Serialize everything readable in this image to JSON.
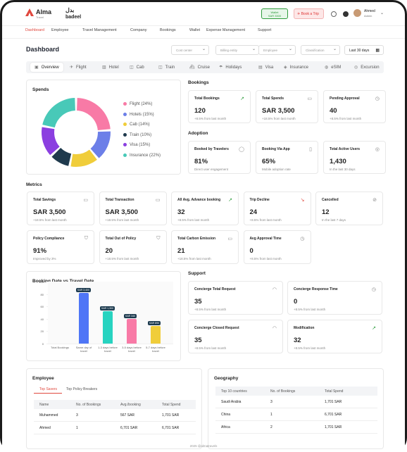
{
  "header": {
    "brand": "Alma",
    "brand_sub": "Travel",
    "partner_line1": "بدل",
    "partner_line2": "badeel",
    "wallet_label": "Wallet",
    "wallet_value": "SAR 3300",
    "book_trip": "Book a Trip",
    "user_name": "Ahmed",
    "user_role": "Admin"
  },
  "nav": [
    "Dashboard",
    "Employee",
    "Travel Management",
    "Company",
    "Bookings",
    "Wallet",
    "Expense Management",
    "Support"
  ],
  "page": {
    "title": "Dashboard",
    "filters": [
      "Cost center",
      "Billing entity",
      "Employee",
      "Classification"
    ],
    "date_range": "Last 30 days"
  },
  "tabs": [
    "Overview",
    "Flight",
    "Hotel",
    "Cab",
    "Train",
    "Cruise",
    "Holidays",
    "Visa",
    "Insurance",
    "eSIM",
    "Excursion"
  ],
  "spends": {
    "title": "Spends",
    "legend": [
      {
        "label": "Flight (24%)",
        "color": "#f87aa6"
      },
      {
        "label": "Hotels (15%)",
        "color": "#6c7fe8"
      },
      {
        "label": "Cab (14%)",
        "color": "#f0cd3a"
      },
      {
        "label": "Train (10%)",
        "color": "#1f3a4d"
      },
      {
        "label": "Visa (15%)",
        "color": "#8b3fe0"
      },
      {
        "label": "Insurance (22%)",
        "color": "#48c9b8"
      }
    ],
    "values": [
      24,
      15,
      14,
      10,
      15,
      22
    ]
  },
  "bookings": {
    "title": "Bookings",
    "cards": [
      {
        "title": "Total Bookings",
        "value": "120",
        "sub": "+8.5% from last month",
        "icon": "trend-up-icon"
      },
      {
        "title": "Total Spends",
        "value": "SAR 3,500",
        "sub": "+18.5% from last month",
        "icon": "wallet-icon"
      },
      {
        "title": "Pending Approval",
        "value": "40",
        "sub": "+8.5% from last month",
        "icon": "clock-icon"
      }
    ]
  },
  "adoption": {
    "title": "Adoption",
    "cards": [
      {
        "title": "Booked by Travelers",
        "value": "81%",
        "sub": "Direct user engagement",
        "icon": "user-icon"
      },
      {
        "title": "Booking Via App",
        "value": "65%",
        "sub": "Mobile adoption rate",
        "icon": "mobile-icon"
      },
      {
        "title": "Total Active Users",
        "value": "1,430",
        "sub": "In the last 30 days",
        "icon": "users-icon"
      }
    ]
  },
  "metrics": {
    "title": "Metrics",
    "cards": [
      {
        "title": "Total Savings",
        "value": "SAR 3,500",
        "sub": "+18.5% from last month",
        "icon": "wallet-icon"
      },
      {
        "title": "Total Transaction",
        "value": "SAR 3,500",
        "sub": "+18.5% from last month",
        "icon": "wallet-icon"
      },
      {
        "title": "All Avg. Advance booking",
        "value": "32",
        "sub": "+8.5% from last month",
        "icon": "trend-up-icon"
      },
      {
        "title": "Trip Decline",
        "value": "24",
        "sub": "+8.5% from last month",
        "icon": "trend-down-icon"
      },
      {
        "title": "Cancelled",
        "value": "12",
        "sub": "In the last 7 days",
        "icon": "cancel-icon"
      },
      {
        "title": "Policy Compliance",
        "value": "91%",
        "sub": "Improved by 3%",
        "icon": "shield-icon"
      },
      {
        "title": "Total Out of Policy",
        "value": "20",
        "sub": "+18.5% from last month",
        "icon": "shield-icon"
      },
      {
        "title": "Total Carbon Emission",
        "value": "21",
        "sub": "+18.5% from last month",
        "icon": "wallet-icon"
      },
      {
        "title": "Avg Approval Time",
        "value": "0",
        "sub": "+8.5% from last month",
        "icon": "clock-icon"
      }
    ]
  },
  "chart_data": {
    "type": "bar",
    "title": "Booking Date vs Travel Date",
    "categories": [
      "Total Bookings",
      "Same day of travel",
      "1-3 days before travel",
      "3-5 days before travel",
      "5-7 days before travel"
    ],
    "values": [
      null,
      82,
      52,
      40,
      28
    ],
    "labels": [
      "",
      "SAR 3,400",
      "SAR 1,300",
      "SAR 340",
      "SAR 890"
    ],
    "colors": [
      "",
      "#4f76f6",
      "#27d3c0",
      "#f87aa6",
      "#f0cd3a"
    ],
    "yticks": [
      0,
      20,
      40,
      60,
      80,
      100
    ],
    "ylim": [
      0,
      100
    ]
  },
  "support": {
    "title": "Support",
    "cards": [
      {
        "title": "Concierge Total Request",
        "value": "35",
        "sub": "+8.5% from last month",
        "icon": "headset-icon"
      },
      {
        "title": "Concierge Response Time",
        "value": "0",
        "sub": "+8.5% from last month",
        "icon": "clock-icon"
      },
      {
        "title": "Concierge Closed Request",
        "value": "35",
        "sub": "+8.5% from last month",
        "icon": "headset-icon"
      },
      {
        "title": "Modification",
        "value": "32",
        "sub": "+8.5% from last month",
        "icon": "trend-up-icon"
      }
    ]
  },
  "employee": {
    "title": "Employee",
    "tabs": [
      "Top Savers",
      "Top Policy Breakers"
    ],
    "columns": [
      "Name",
      "No. of Bookings",
      "Avg./booking",
      "Total Spend"
    ],
    "rows": [
      [
        "Muhammed",
        "3",
        "567 SAR",
        "1,701 SAR"
      ],
      [
        "Ahmed",
        "1",
        "6,701 SAR",
        "6,701 SAR"
      ]
    ]
  },
  "geography": {
    "title": "Geography",
    "columns": [
      "Top 10 countries",
      "No. of Bookings",
      "Total Spend"
    ],
    "rows": [
      [
        "Saudi Arabia",
        "3",
        "1,701 SAR"
      ],
      [
        "China",
        "1",
        "6,701 SAR"
      ],
      [
        "Africa",
        "2",
        "1,701 SAR"
      ]
    ]
  },
  "footer": "2025 @almatravels"
}
